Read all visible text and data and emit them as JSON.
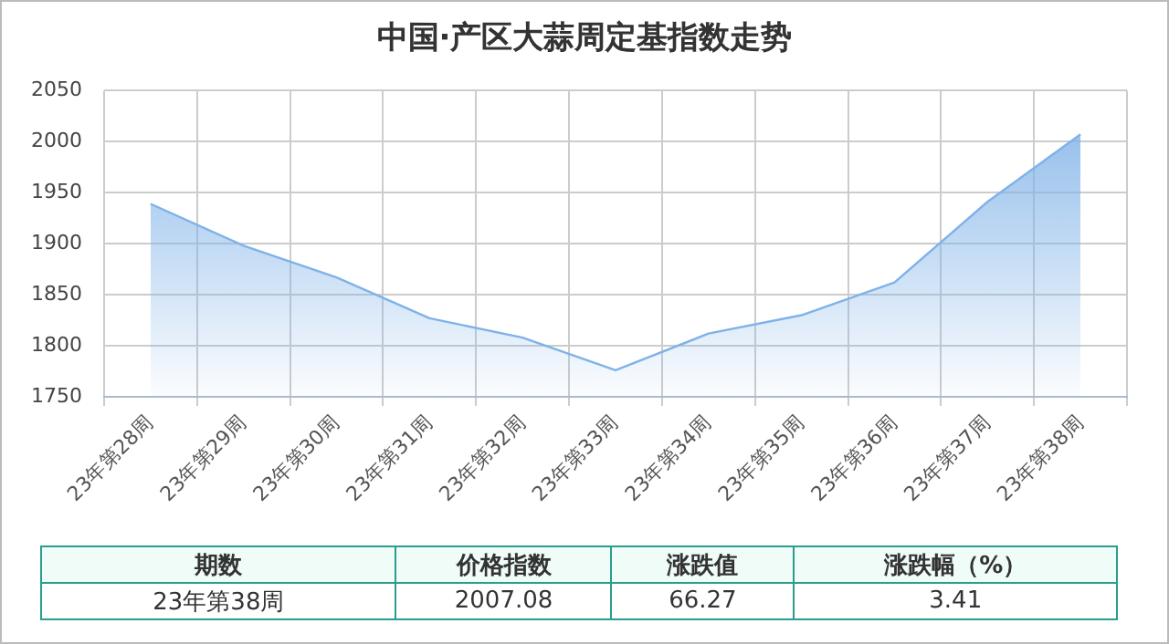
{
  "chart_data": {
    "type": "area",
    "title": "中国·产区大蒜周定基指数走势",
    "categories": [
      "23年第28周",
      "23年第29周",
      "23年第30周",
      "23年第31周",
      "23年第32周",
      "23年第33周",
      "23年第34周",
      "23年第35周",
      "23年第36周",
      "23年第37周",
      "23年第38周"
    ],
    "series": [
      {
        "color": "#7fb2e8",
        "values": [
          1939,
          1898,
          1867,
          1827,
          1808,
          1776,
          1812,
          1830,
          1862,
          1941,
          2007.08
        ]
      }
    ],
    "ylim": [
      1750,
      2050
    ],
    "yticks": [
      1750,
      1800,
      1850,
      1900,
      1950,
      2000,
      2050
    ],
    "grid": true,
    "legend": false,
    "annotations": [
      "期数",
      "价格指数",
      "涨跌值",
      "涨跌幅（%）",
      "23年第38周",
      "2007.08",
      "66.27",
      "3.41"
    ]
  }
}
